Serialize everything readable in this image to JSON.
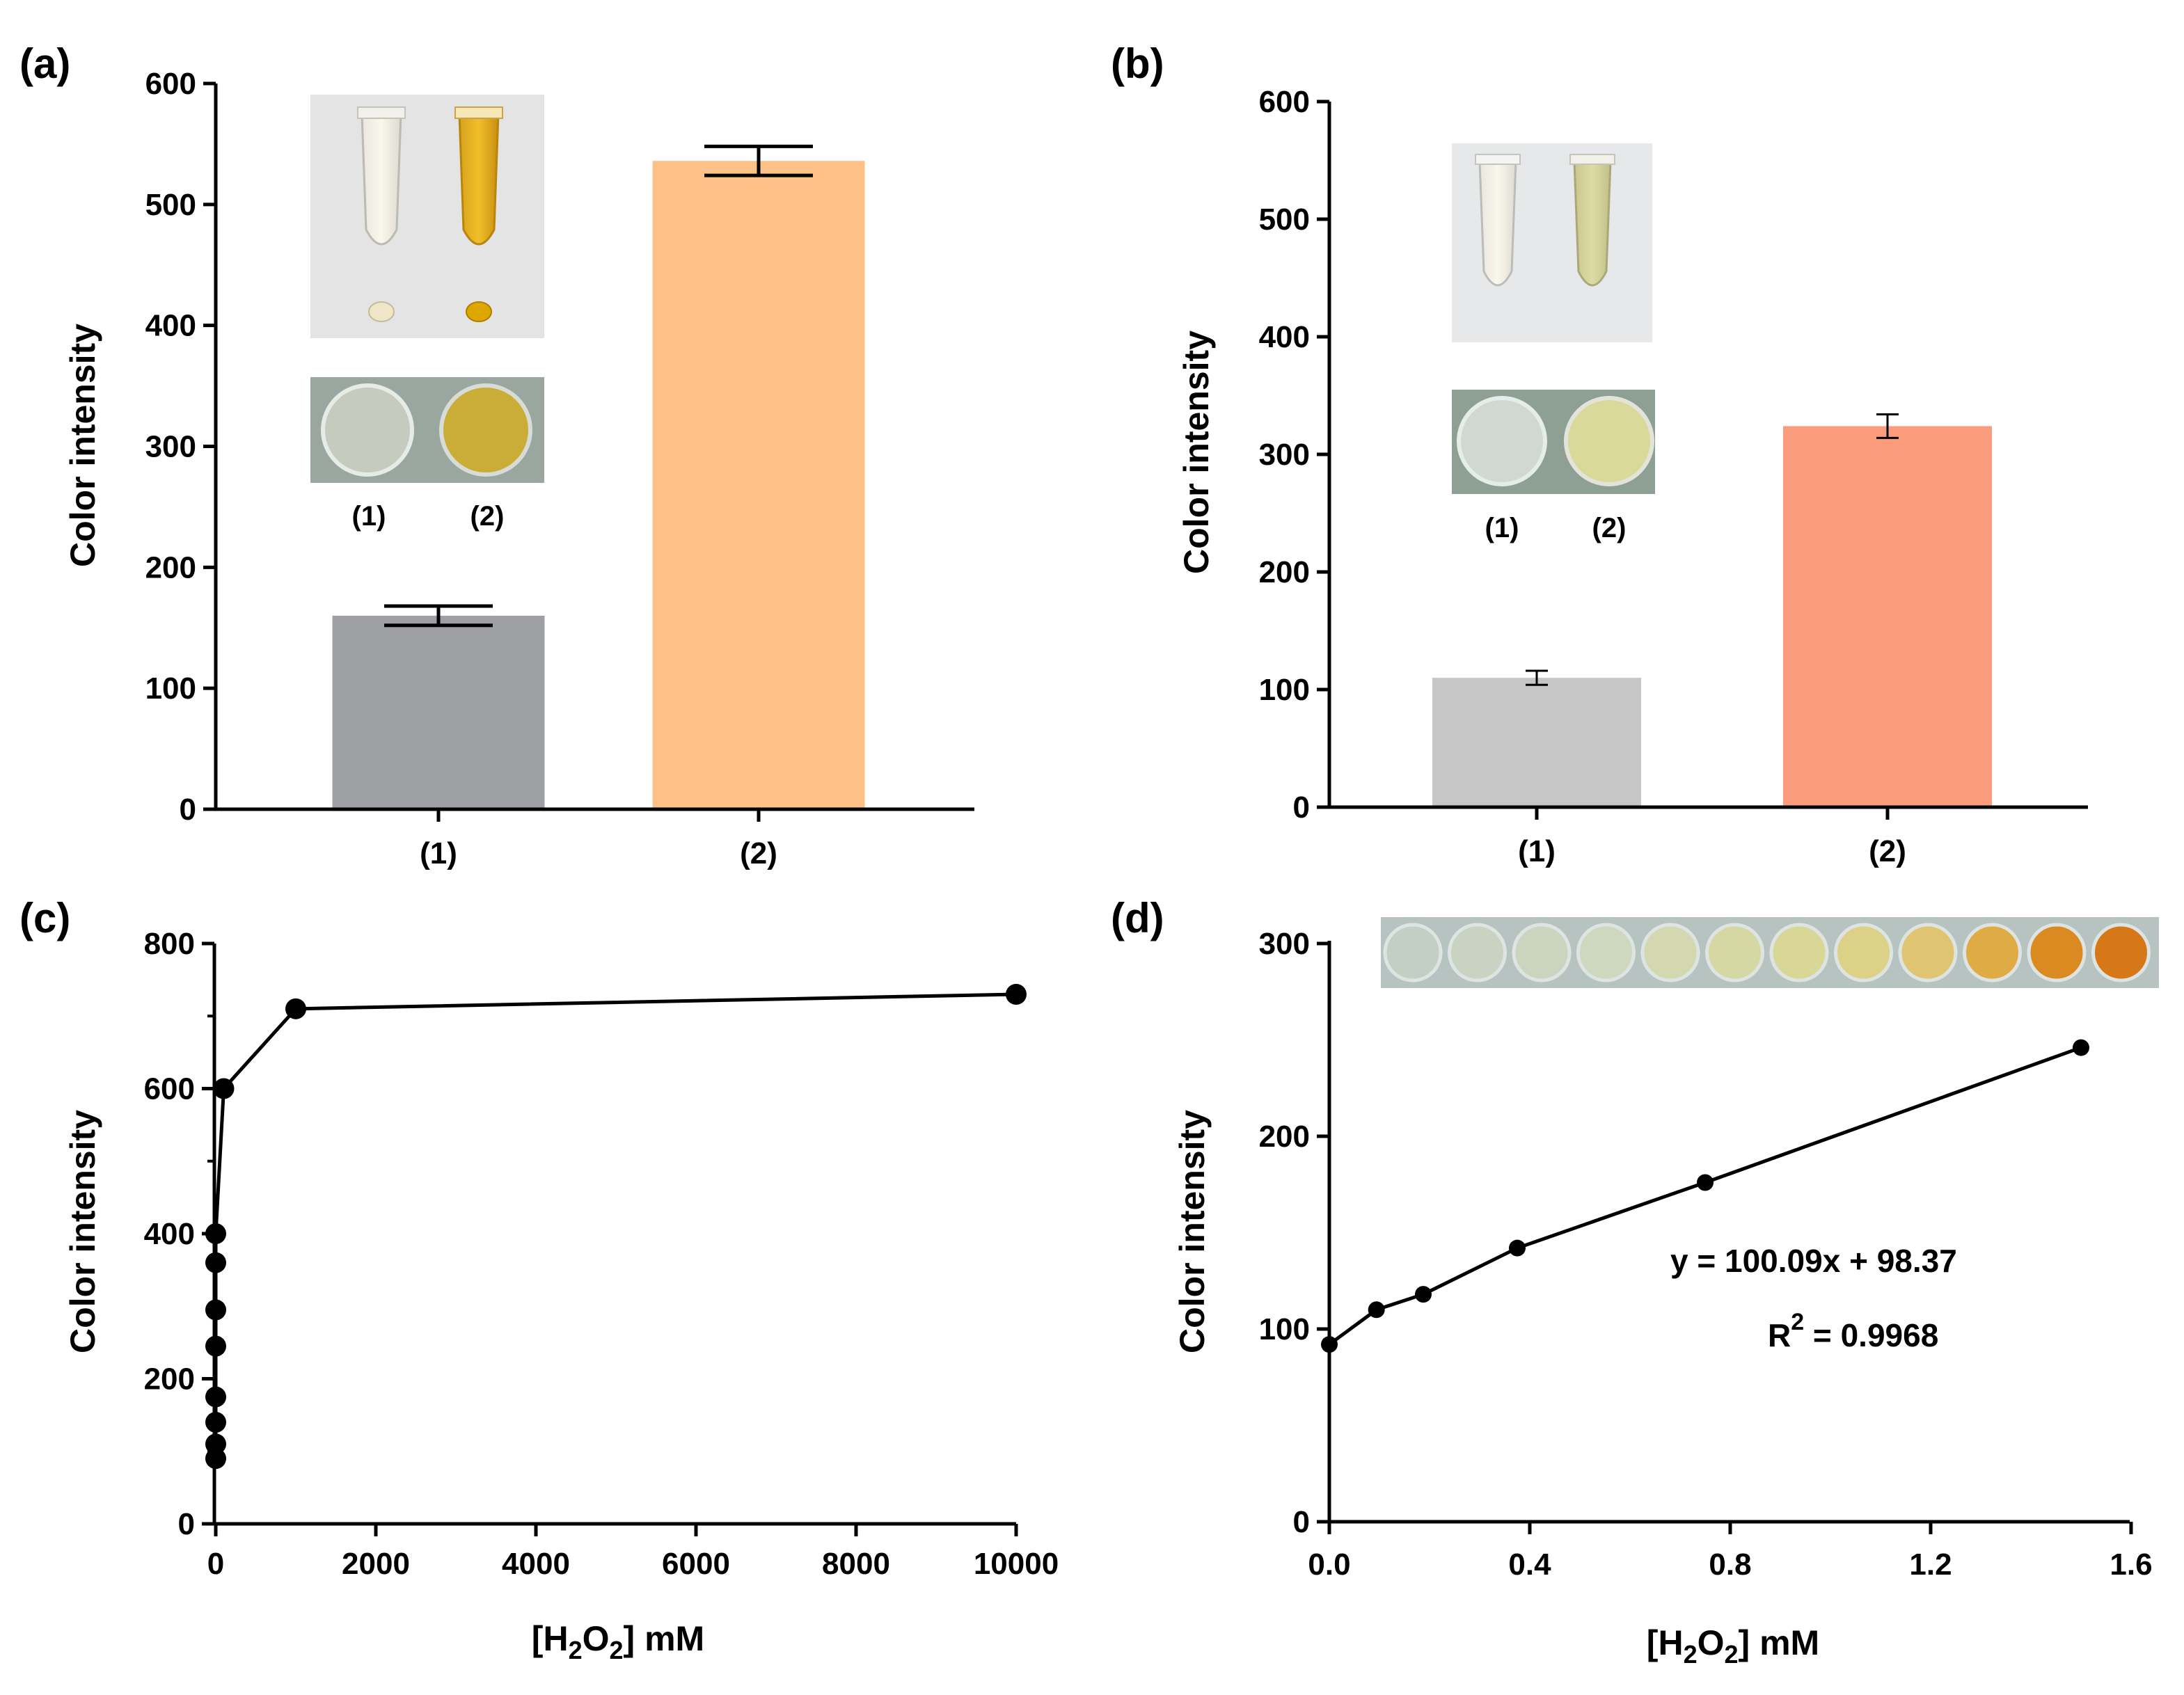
{
  "chart_data": [
    {
      "panel": "(a)",
      "type": "bar",
      "categories": [
        "(1)",
        "(2)"
      ],
      "values": [
        160,
        536
      ],
      "errors": [
        8,
        12
      ],
      "colors": [
        "#9d9fa3",
        "#fdc187"
      ],
      "ylabel": "Color intensity",
      "ylim": [
        0,
        600
      ],
      "yticks": [
        0,
        100,
        200,
        300,
        400,
        500,
        600
      ],
      "inset_labels": [
        "(1)",
        "(2)"
      ]
    },
    {
      "panel": "(b)",
      "type": "bar",
      "categories": [
        "(1)",
        "(2)"
      ],
      "values": [
        110,
        324
      ],
      "errors": [
        6,
        10
      ],
      "colors": [
        "#c6c6c6",
        "#fb9d7c"
      ],
      "ylabel": "Color intensity",
      "ylim": [
        0,
        600
      ],
      "yticks": [
        0,
        100,
        200,
        300,
        400,
        500,
        600
      ],
      "inset_labels": [
        "(1)",
        "(2)"
      ]
    },
    {
      "panel": "(c)",
      "type": "line",
      "x": [
        0,
        0,
        0,
        0,
        0,
        0,
        0,
        0,
        100,
        1000,
        10000
      ],
      "y": [
        90,
        110,
        140,
        175,
        245,
        295,
        360,
        400,
        600,
        710,
        730
      ],
      "ylabel": "Color intensity",
      "xlabel": "[H2O2] mM",
      "xlim": [
        0,
        10000
      ],
      "ylim": [
        0,
        800
      ],
      "xticks": [
        0,
        2000,
        4000,
        6000,
        8000,
        10000
      ],
      "yticks": [
        0,
        200,
        400,
        600,
        800
      ]
    },
    {
      "panel": "(d)",
      "type": "line",
      "x": [
        0,
        0.094,
        0.1875,
        0.375,
        0.75,
        1.5
      ],
      "y": [
        92,
        110,
        118,
        142,
        176,
        246
      ],
      "ylabel": "Color intensity",
      "xlabel": "[H2O2] mM",
      "xlim": [
        0,
        1.6
      ],
      "ylim": [
        0,
        300
      ],
      "xticks": [
        "0.0",
        "0.4",
        "0.8",
        "1.2",
        "1.6"
      ],
      "yticks": [
        0,
        100,
        200,
        300
      ],
      "equation": "y = 100.09x + 98.37",
      "r2_prefix": "R",
      "r2_sup": "2",
      "r2_value": " = 0.9968"
    }
  ],
  "xlabel_parts": {
    "pre": "[H",
    "sub2": "2",
    "mid": "O",
    "post": "] mM"
  },
  "strip_colors": [
    "#c3cfc4",
    "#c8d3c2",
    "#cad5c0",
    "#cdd8bf",
    "#d3d8b0",
    "#d6d8a3",
    "#d8d796",
    "#dcd186",
    "#dfc572",
    "#dfab45",
    "#db8a22",
    "#d67818"
  ]
}
